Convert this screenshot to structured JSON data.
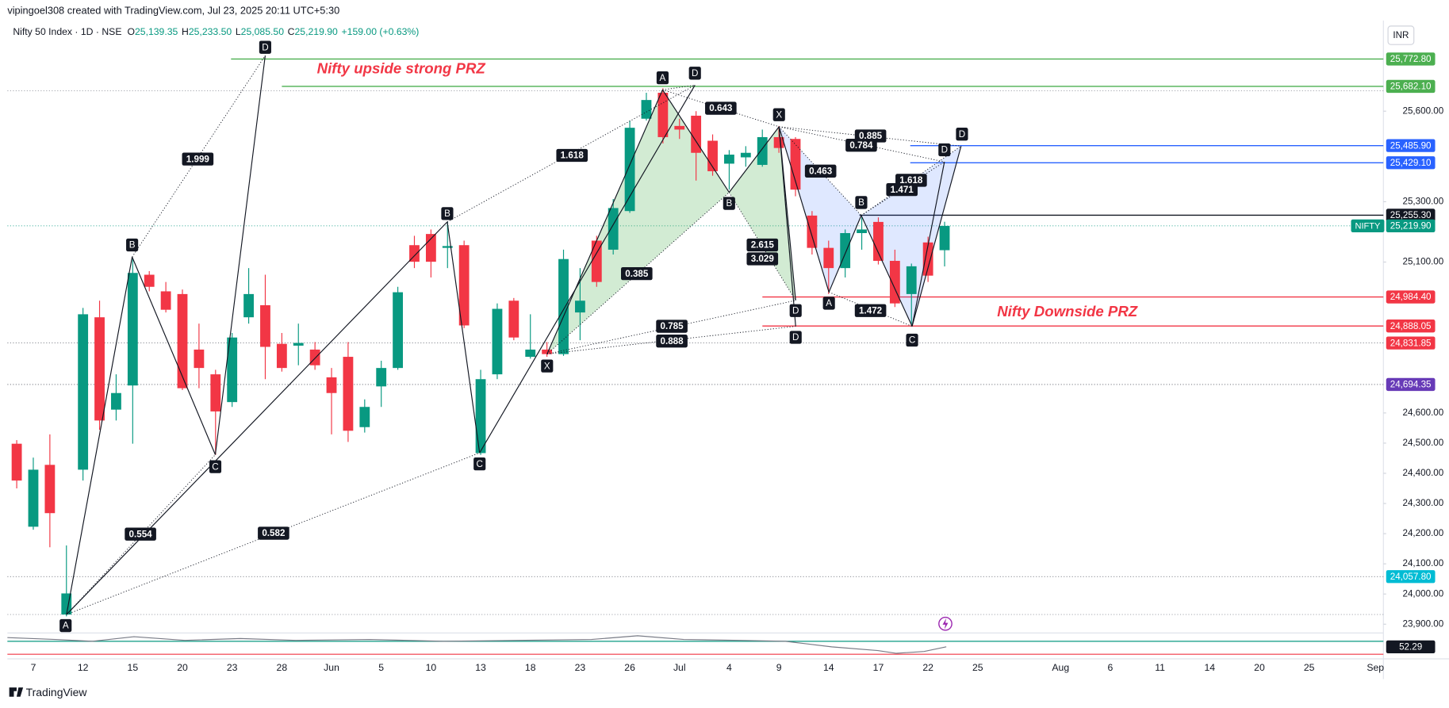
{
  "header": {
    "author_line": "vipingoel308 created with TradingView.com, Jul 23, 2025 20:11 UTC+5:30",
    "brand": "TradingView"
  },
  "chart_data": {
    "type": "candlestick",
    "symbol": "Nifty 50 Index · 1D · NSE",
    "ohlc_legend": [
      {
        "prefix": "O",
        "value": 25139.35,
        "label": "25,139.35"
      },
      {
        "prefix": "H",
        "value": 25233.5,
        "label": "25,233.50"
      },
      {
        "prefix": "L",
        "value": 25085.5,
        "label": "25,085.50"
      },
      {
        "prefix": "C",
        "value": 25219.9,
        "label": "25,219.90"
      }
    ],
    "change": "+159.00 (+0.63%)",
    "currency": "INR",
    "categories": [
      null,
      "7",
      null,
      null,
      "12",
      null,
      null,
      "15",
      null,
      null,
      "20",
      null,
      null,
      "23",
      null,
      null,
      "28",
      null,
      null,
      "Jun",
      null,
      null,
      "5",
      null,
      null,
      "10",
      null,
      null,
      "13",
      null,
      null,
      "18",
      null,
      null,
      "23",
      null,
      null,
      "26",
      null,
      null,
      "Jul",
      null,
      null,
      "4",
      null,
      null,
      "9",
      null,
      null,
      "14",
      null,
      null,
      "17",
      null,
      null,
      "22",
      null,
      null,
      "25",
      null,
      null,
      null,
      null,
      "Aug",
      null,
      null,
      "6",
      null,
      null,
      "11",
      null,
      null,
      "14",
      null,
      null,
      "20",
      null,
      null,
      "25",
      null,
      null,
      null,
      "Sep"
    ],
    "open": [
      24498,
      24223,
      24428,
      23932,
      24412,
      24917,
      24611,
      24691,
      25058,
      25003,
      24994,
      24810,
      24728,
      24636,
      24917,
      24957,
      24829,
      24823,
      24810,
      24718,
      24786,
      24553,
      24688,
      24749,
      25156,
      25193,
      25147,
      25156,
      24467,
      24728,
      24972,
      24786,
      24810,
      24795,
      24933,
      25171,
      25141,
      25269,
      25575,
      25661,
      25551,
      25585,
      25502,
      25426,
      25447,
      25422,
      25514,
      25508,
      25254,
      25147,
      25080,
      25196,
      25233,
      25104,
      24994,
      25165,
      25139.35,
      null,
      null,
      null,
      null,
      null,
      null,
      null,
      null,
      null,
      null,
      null,
      null,
      null,
      null,
      null,
      null,
      null,
      null,
      null,
      null,
      null,
      null,
      null,
      null,
      null,
      null
    ],
    "high": [
      24510,
      24452,
      24529,
      24161,
      24948,
      24972,
      24728,
      25110,
      25070,
      25034,
      25009,
      24896,
      24743,
      24865,
      25080,
      25058,
      24865,
      24896,
      24835,
      24749,
      24835,
      24645,
      24773,
      25018,
      25187,
      25208,
      25233,
      25171,
      24743,
      24963,
      24981,
      24927,
      24835,
      25141,
      25080,
      25187,
      25309,
      25569,
      25661,
      25676,
      25575,
      25600,
      25523,
      25471,
      25484,
      25539,
      25551,
      25514,
      25269,
      25171,
      25208,
      25248,
      25248,
      25141,
      25095,
      25184,
      25233.5,
      null,
      null,
      null,
      null,
      null,
      null,
      null,
      null,
      null,
      null,
      null,
      null,
      null,
      null,
      null,
      null,
      null,
      null,
      null,
      null,
      null,
      null,
      null,
      null,
      null,
      null
    ],
    "low": [
      24350,
      24213,
      24155,
      23926,
      24376,
      24544,
      24575,
      24498,
      25003,
      24933,
      24676,
      24682,
      24461,
      24620,
      24896,
      24712,
      24737,
      24758,
      24743,
      24529,
      24504,
      24535,
      24620,
      24743,
      25080,
      25049,
      25080,
      24881,
      24461,
      24712,
      24841,
      24780,
      24786,
      24789,
      24841,
      25018,
      25125,
      25263,
      25569,
      25493,
      25508,
      25370,
      25386,
      25340,
      25416,
      25416,
      25462,
      25318,
      25125,
      24994,
      25049,
      25141,
      25092,
      24951,
      24890,
      25034,
      25085.5,
      null,
      null,
      null,
      null,
      null,
      null,
      null,
      null,
      null,
      null,
      null,
      null,
      null,
      null,
      null,
      null,
      null,
      null,
      null,
      null,
      null,
      null,
      null,
      null,
      null,
      null
    ],
    "close": [
      24376,
      24412,
      24268,
      24002,
      24927,
      24575,
      24666,
      25064,
      25018,
      24942,
      24682,
      24749,
      24605,
      24850,
      24994,
      24819,
      24749,
      24832,
      24758,
      24666,
      24541,
      24620,
      24749,
      25000,
      25101,
      25101,
      25153,
      24890,
      24712,
      24945,
      24850,
      24810,
      24795,
      25110,
      24972,
      25034,
      25279,
      25545,
      25637,
      25514,
      25539,
      25462,
      25401,
      25456,
      25462,
      25514,
      25478,
      25340,
      25147,
      25080,
      25196,
      25208,
      25104,
      24963,
      25086,
      25055,
      25219.9,
      null,
      null,
      null,
      null,
      null,
      null,
      null,
      null,
      null,
      null,
      null,
      null,
      null,
      null,
      null,
      null,
      null,
      null,
      null,
      null,
      null,
      null,
      null,
      null,
      null,
      null
    ],
    "up_color": "#089981",
    "down_color": "#f23645",
    "ylim": [
      23877,
      25830
    ],
    "yticks": [
      {
        "value": 25600,
        "label": "25,600.00"
      },
      {
        "value": 25300,
        "label": "25,300.00"
      },
      {
        "value": 25100,
        "label": "25,100.00"
      },
      {
        "value": 24600,
        "label": "24,600.00"
      },
      {
        "value": 24500,
        "label": "24,500.00"
      },
      {
        "value": 24400,
        "label": "24,400.00"
      },
      {
        "value": 24300,
        "label": "24,300.00"
      },
      {
        "value": 24200,
        "label": "24,200.00"
      },
      {
        "value": 24100,
        "label": "24,100.00"
      },
      {
        "value": 24000,
        "label": "24,000.00"
      },
      {
        "value": 23900,
        "label": "23,900.00"
      }
    ],
    "grid": false,
    "last_price": {
      "symbol": "NIFTY",
      "value": 25219.9,
      "label": "25,219.90",
      "color": "#089981"
    },
    "price_lines": [
      {
        "value": 25772.8,
        "label": "25,772.80",
        "color": "#4caf50",
        "style": "solid"
      },
      {
        "value": 25682.1,
        "label": "25,682.10",
        "color": "#4caf50",
        "style": "solid"
      },
      {
        "value": 25485.9,
        "label": "25,485.90",
        "color": "#2962ff",
        "style": "solid"
      },
      {
        "value": 25429.1,
        "label": "25,429.10",
        "color": "#2962ff",
        "style": "solid"
      },
      {
        "value": 25255.3,
        "label": "25,255.30",
        "color": "#131722",
        "style": "solid"
      },
      {
        "value": 24984.4,
        "label": "24,984.40",
        "color": "#f23645",
        "style": "solid"
      },
      {
        "value": 24888.05,
        "label": "24,888.05",
        "color": "#f23645",
        "style": "solid"
      },
      {
        "value": 24831.85,
        "label": "24,831.85",
        "color": "#f23645",
        "style": "dotted"
      },
      {
        "value": 24694.35,
        "label": "24,694.35",
        "color": "#673ab7",
        "style": "dotted"
      },
      {
        "value": 24057.8,
        "label": "24,057.80",
        "color": "#00bcd4",
        "style": "dotted"
      }
    ],
    "annotations": [
      "Nifty upside strong PRZ",
      "Nifty Downside PRZ"
    ],
    "point_labels": [
      "D",
      "B",
      "C",
      "A",
      "B",
      "C",
      "A",
      "D",
      "X",
      "B",
      "X",
      "D",
      "D",
      "A",
      "B",
      "C",
      "D",
      "D"
    ],
    "ratio_labels": [
      1.999,
      0.554,
      0.582,
      1.618,
      0.385,
      0.643,
      2.615,
      3.029,
      0.785,
      0.888,
      0.463,
      0.885,
      0.784,
      1.618,
      1.471,
      1.472
    ],
    "indicator": {
      "value": 52.29
    }
  }
}
